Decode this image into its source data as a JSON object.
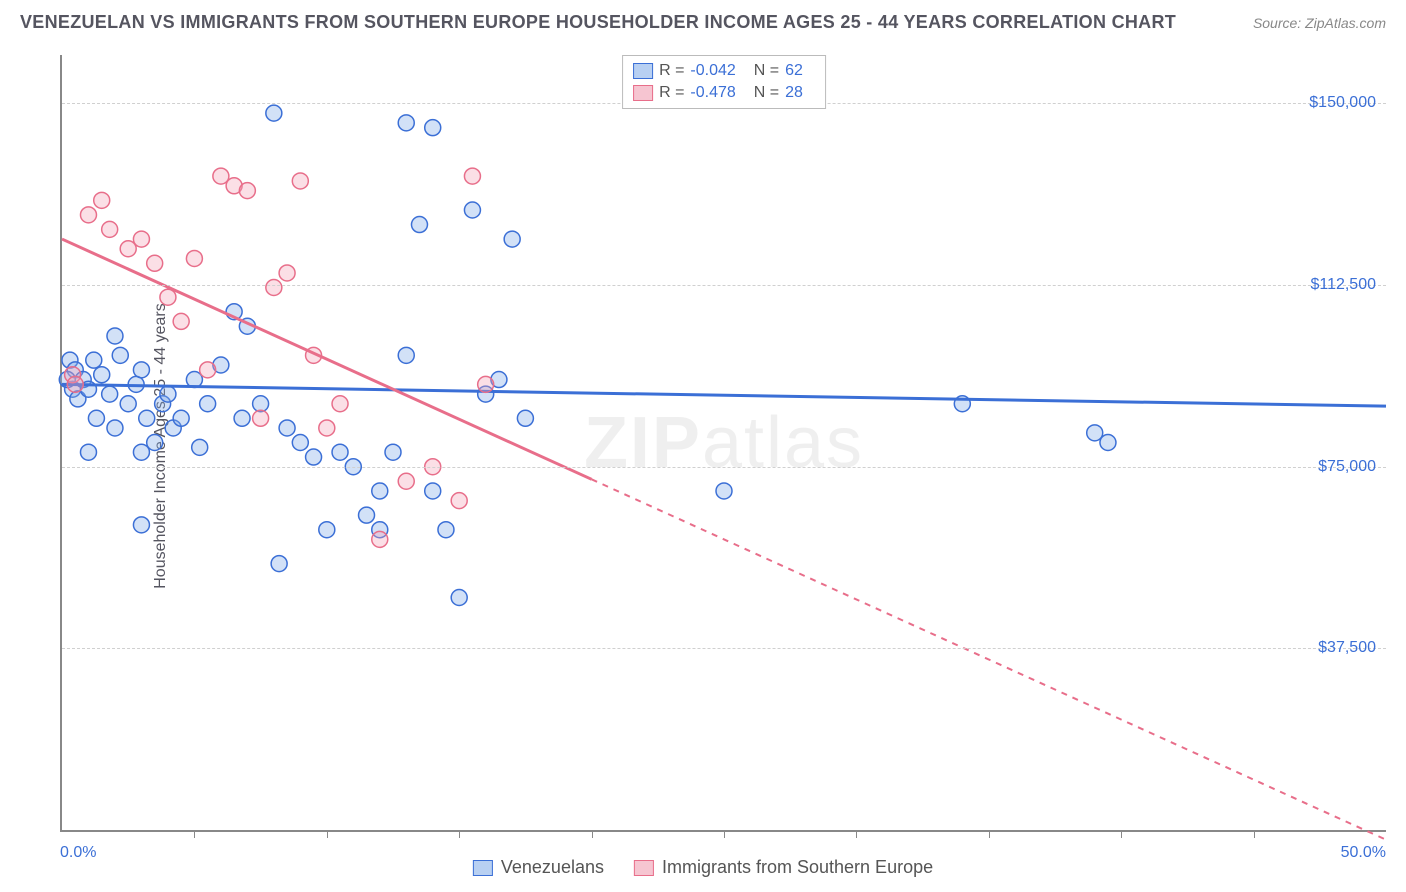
{
  "title": "VENEZUELAN VS IMMIGRANTS FROM SOUTHERN EUROPE HOUSEHOLDER INCOME AGES 25 - 44 YEARS CORRELATION CHART",
  "source": "Source: ZipAtlas.com",
  "watermark_a": "ZIP",
  "watermark_b": "atlas",
  "ylabel": "Householder Income Ages 25 - 44 years",
  "x_min_label": "0.0%",
  "x_max_label": "50.0%",
  "chart": {
    "type": "scatter",
    "xlim": [
      0,
      50
    ],
    "ylim": [
      0,
      160000
    ],
    "yticks": [
      37500,
      75000,
      112500,
      150000
    ],
    "ytick_labels": [
      "$37,500",
      "$75,000",
      "$112,500",
      "$150,000"
    ],
    "xticks_minor": [
      5,
      10,
      15,
      20,
      25,
      30,
      35,
      40,
      45
    ],
    "background_color": "#ffffff",
    "grid_color": "#d0d0d0",
    "marker_radius": 8,
    "marker_fill_opacity": 0.35,
    "series": [
      {
        "name": "Venezuelans",
        "color": "#7fa8e8",
        "stroke": "#3b6fd6",
        "r": -0.042,
        "n": 62,
        "trend": {
          "x1": 0,
          "y1": 92000,
          "x2": 50,
          "y2": 87500,
          "solid_until_x": 50
        },
        "points": [
          [
            0.3,
            97000
          ],
          [
            0.4,
            91000
          ],
          [
            0.5,
            95000
          ],
          [
            0.8,
            93000
          ],
          [
            0.6,
            89000
          ],
          [
            1.0,
            91000
          ],
          [
            1.2,
            97000
          ],
          [
            1.5,
            94000
          ],
          [
            1.0,
            78000
          ],
          [
            1.3,
            85000
          ],
          [
            1.8,
            90000
          ],
          [
            2.0,
            102000
          ],
          [
            2.2,
            98000
          ],
          [
            2.5,
            88000
          ],
          [
            2.0,
            83000
          ],
          [
            2.8,
            92000
          ],
          [
            3.0,
            78000
          ],
          [
            3.2,
            85000
          ],
          [
            3.5,
            80000
          ],
          [
            3.0,
            95000
          ],
          [
            3.8,
            88000
          ],
          [
            4.0,
            90000
          ],
          [
            4.2,
            83000
          ],
          [
            4.5,
            85000
          ],
          [
            5.0,
            93000
          ],
          [
            5.5,
            88000
          ],
          [
            6.0,
            96000
          ],
          [
            5.2,
            79000
          ],
          [
            6.5,
            107000
          ],
          [
            6.8,
            85000
          ],
          [
            7.0,
            104000
          ],
          [
            7.5,
            88000
          ],
          [
            8.0,
            148000
          ],
          [
            8.5,
            83000
          ],
          [
            8.2,
            55000
          ],
          [
            9.0,
            80000
          ],
          [
            9.5,
            77000
          ],
          [
            10.0,
            62000
          ],
          [
            10.5,
            78000
          ],
          [
            11.0,
            75000
          ],
          [
            11.5,
            65000
          ],
          [
            12.0,
            62000
          ],
          [
            12.0,
            70000
          ],
          [
            12.5,
            78000
          ],
          [
            13.0,
            98000
          ],
          [
            13.0,
            146000
          ],
          [
            13.5,
            125000
          ],
          [
            14.0,
            70000
          ],
          [
            14.5,
            62000
          ],
          [
            14.0,
            145000
          ],
          [
            15.0,
            48000
          ],
          [
            15.5,
            128000
          ],
          [
            16.0,
            90000
          ],
          [
            16.5,
            93000
          ],
          [
            17.0,
            122000
          ],
          [
            17.5,
            85000
          ],
          [
            25.0,
            70000
          ],
          [
            34.0,
            88000
          ],
          [
            39.0,
            82000
          ],
          [
            39.5,
            80000
          ],
          [
            3.0,
            63000
          ],
          [
            0.2,
            93000
          ]
        ]
      },
      {
        "name": "Immigrants from Southern Europe",
        "color": "#f3a3b7",
        "stroke": "#e86e8a",
        "r": -0.478,
        "n": 28,
        "trend": {
          "x1": 0,
          "y1": 122000,
          "x2": 50,
          "y2": -2000,
          "solid_until_x": 20
        },
        "points": [
          [
            0.4,
            94000
          ],
          [
            0.5,
            92000
          ],
          [
            1.0,
            127000
          ],
          [
            1.5,
            130000
          ],
          [
            1.8,
            124000
          ],
          [
            2.5,
            120000
          ],
          [
            3.0,
            122000
          ],
          [
            3.5,
            117000
          ],
          [
            4.0,
            110000
          ],
          [
            4.5,
            105000
          ],
          [
            5.0,
            118000
          ],
          [
            5.5,
            95000
          ],
          [
            6.0,
            135000
          ],
          [
            6.5,
            133000
          ],
          [
            7.0,
            132000
          ],
          [
            7.5,
            85000
          ],
          [
            8.0,
            112000
          ],
          [
            8.5,
            115000
          ],
          [
            9.0,
            134000
          ],
          [
            9.5,
            98000
          ],
          [
            10.0,
            83000
          ],
          [
            10.5,
            88000
          ],
          [
            12.0,
            60000
          ],
          [
            13.0,
            72000
          ],
          [
            14.0,
            75000
          ],
          [
            15.0,
            68000
          ],
          [
            15.5,
            135000
          ],
          [
            16.0,
            92000
          ]
        ]
      }
    ]
  },
  "legend_top": [
    {
      "swatch_fill": "#b8d0f2",
      "swatch_stroke": "#3b6fd6",
      "r_label": "R =",
      "r_val": "-0.042",
      "n_label": "N =",
      "n_val": "62"
    },
    {
      "swatch_fill": "#f6c5d1",
      "swatch_stroke": "#e86e8a",
      "r_label": "R =",
      "r_val": "-0.478",
      "n_label": "N =",
      "n_val": "28"
    }
  ],
  "legend_bottom": [
    {
      "swatch_fill": "#b8d0f2",
      "swatch_stroke": "#3b6fd6",
      "label": "Venezuelans"
    },
    {
      "swatch_fill": "#f6c5d1",
      "swatch_stroke": "#e86e8a",
      "label": "Immigrants from Southern Europe"
    }
  ]
}
